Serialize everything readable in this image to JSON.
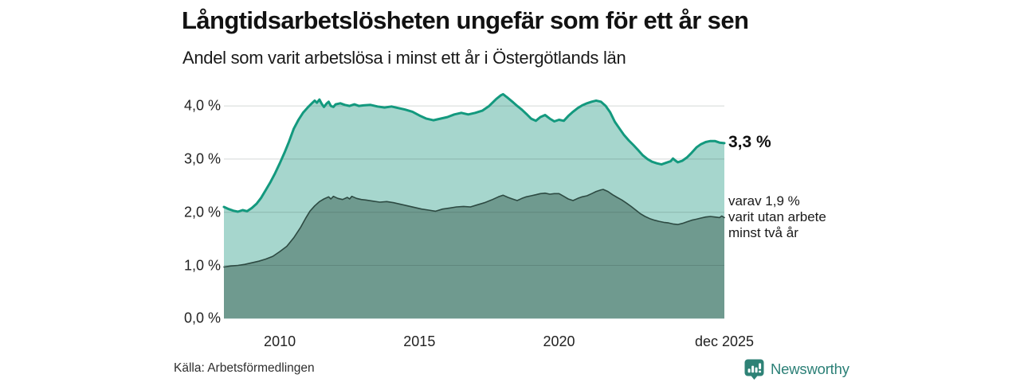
{
  "header": {
    "title": "Långtidsarbetslösheten ungefär som för ett år sen",
    "subtitle": "Andel som varit arbetslösa i minst ett år i Östergötlands län"
  },
  "annotation": {
    "total_end_label": "3,3 %",
    "subset_lines": [
      "varav 1,9 %",
      "varit utan arbete",
      "minst två år"
    ]
  },
  "footer": {
    "source": "Källa: Arbetsförmedlingen",
    "brand": "Newsworthy"
  },
  "colors": {
    "total_line": "#13997e",
    "total_fill": "#a6d6cd",
    "subset_line": "#2d4a42",
    "subset_fill": "#6f9a8f",
    "gridline": "rgba(40,60,55,0.20)",
    "brand_teal": "#2e8276",
    "text_dark": "#121212"
  },
  "chart_data": {
    "type": "area",
    "title": "Långtidsarbetslösheten ungefär som för ett år sen",
    "subtitle": "Andel som varit arbetslösa i minst ett år i Östergötlands län",
    "xlabel": "",
    "ylabel": "",
    "x_range": [
      2008.0,
      2025.92
    ],
    "ylim": [
      0,
      4.4
    ],
    "grid": true,
    "legend_position": "none",
    "y_ticks": [
      {
        "value": 0.0,
        "label": "0,0 %"
      },
      {
        "value": 1.0,
        "label": "1,0 %"
      },
      {
        "value": 2.0,
        "label": "2,0 %"
      },
      {
        "value": 3.0,
        "label": "3,0 %"
      },
      {
        "value": 4.0,
        "label": "4,0 %"
      }
    ],
    "x_ticks": [
      {
        "x": 2010,
        "label": "2010"
      },
      {
        "x": 2015,
        "label": "2015"
      },
      {
        "x": 2020,
        "label": "2020"
      },
      {
        "x": 2025.92,
        "label": "dec 2025"
      }
    ],
    "series": [
      {
        "id": "minst-ett-ar",
        "name": "Andel som varit arbetslösa i minst ett år",
        "end_value": 3.3,
        "end_value_label": "3,3 %",
        "line_color": "#13997e",
        "fill_color": "#a6d6cd",
        "line_width": 3,
        "points": [
          [
            2008.0,
            2.1
          ],
          [
            2008.17,
            2.06
          ],
          [
            2008.33,
            2.03
          ],
          [
            2008.5,
            2.01
          ],
          [
            2008.67,
            2.04
          ],
          [
            2008.83,
            2.02
          ],
          [
            2009.0,
            2.08
          ],
          [
            2009.17,
            2.16
          ],
          [
            2009.33,
            2.27
          ],
          [
            2009.5,
            2.42
          ],
          [
            2009.67,
            2.57
          ],
          [
            2009.83,
            2.73
          ],
          [
            2010.0,
            2.92
          ],
          [
            2010.17,
            3.12
          ],
          [
            2010.33,
            3.33
          ],
          [
            2010.5,
            3.57
          ],
          [
            2010.67,
            3.74
          ],
          [
            2010.83,
            3.87
          ],
          [
            2011.0,
            3.97
          ],
          [
            2011.17,
            4.06
          ],
          [
            2011.25,
            4.1
          ],
          [
            2011.33,
            4.06
          ],
          [
            2011.42,
            4.12
          ],
          [
            2011.5,
            4.04
          ],
          [
            2011.58,
            3.98
          ],
          [
            2011.67,
            4.04
          ],
          [
            2011.75,
            4.08
          ],
          [
            2011.83,
            4.0
          ],
          [
            2011.92,
            3.98
          ],
          [
            2012.0,
            4.03
          ],
          [
            2012.17,
            4.05
          ],
          [
            2012.33,
            4.02
          ],
          [
            2012.5,
            4.0
          ],
          [
            2012.67,
            4.03
          ],
          [
            2012.83,
            4.0
          ],
          [
            2013.0,
            4.01
          ],
          [
            2013.25,
            4.02
          ],
          [
            2013.5,
            3.99
          ],
          [
            2013.75,
            3.97
          ],
          [
            2014.0,
            3.99
          ],
          [
            2014.25,
            3.96
          ],
          [
            2014.5,
            3.93
          ],
          [
            2014.75,
            3.89
          ],
          [
            2015.0,
            3.82
          ],
          [
            2015.25,
            3.76
          ],
          [
            2015.5,
            3.73
          ],
          [
            2015.75,
            3.76
          ],
          [
            2016.0,
            3.79
          ],
          [
            2016.25,
            3.84
          ],
          [
            2016.5,
            3.87
          ],
          [
            2016.75,
            3.84
          ],
          [
            2017.0,
            3.87
          ],
          [
            2017.25,
            3.91
          ],
          [
            2017.5,
            4.0
          ],
          [
            2017.75,
            4.13
          ],
          [
            2017.92,
            4.2
          ],
          [
            2018.0,
            4.22
          ],
          [
            2018.17,
            4.15
          ],
          [
            2018.33,
            4.08
          ],
          [
            2018.5,
            4.0
          ],
          [
            2018.67,
            3.93
          ],
          [
            2018.83,
            3.85
          ],
          [
            2019.0,
            3.76
          ],
          [
            2019.17,
            3.72
          ],
          [
            2019.33,
            3.79
          ],
          [
            2019.5,
            3.83
          ],
          [
            2019.67,
            3.76
          ],
          [
            2019.83,
            3.71
          ],
          [
            2020.0,
            3.74
          ],
          [
            2020.17,
            3.72
          ],
          [
            2020.33,
            3.81
          ],
          [
            2020.5,
            3.89
          ],
          [
            2020.67,
            3.96
          ],
          [
            2020.83,
            4.01
          ],
          [
            2021.0,
            4.05
          ],
          [
            2021.17,
            4.08
          ],
          [
            2021.33,
            4.1
          ],
          [
            2021.5,
            4.08
          ],
          [
            2021.67,
            4.0
          ],
          [
            2021.83,
            3.88
          ],
          [
            2022.0,
            3.7
          ],
          [
            2022.17,
            3.57
          ],
          [
            2022.33,
            3.45
          ],
          [
            2022.5,
            3.35
          ],
          [
            2022.67,
            3.26
          ],
          [
            2022.83,
            3.17
          ],
          [
            2023.0,
            3.07
          ],
          [
            2023.17,
            3.0
          ],
          [
            2023.33,
            2.95
          ],
          [
            2023.5,
            2.92
          ],
          [
            2023.67,
            2.9
          ],
          [
            2023.83,
            2.93
          ],
          [
            2024.0,
            2.96
          ],
          [
            2024.08,
            3.01
          ],
          [
            2024.17,
            2.97
          ],
          [
            2024.25,
            2.94
          ],
          [
            2024.42,
            2.97
          ],
          [
            2024.58,
            3.03
          ],
          [
            2024.75,
            3.12
          ],
          [
            2024.92,
            3.22
          ],
          [
            2025.08,
            3.28
          ],
          [
            2025.25,
            3.32
          ],
          [
            2025.42,
            3.34
          ],
          [
            2025.58,
            3.34
          ],
          [
            2025.75,
            3.31
          ],
          [
            2025.92,
            3.3
          ]
        ]
      },
      {
        "id": "minst-tva-ar",
        "name": "varav utan arbete minst två år",
        "end_value": 1.9,
        "end_value_label": "1,9 %",
        "line_color": "#2d4a42",
        "fill_color": "#6f9a8f",
        "line_width": 1.6,
        "points": [
          [
            2008.0,
            0.97
          ],
          [
            2008.25,
            0.99
          ],
          [
            2008.5,
            1.0
          ],
          [
            2008.75,
            1.02
          ],
          [
            2009.0,
            1.05
          ],
          [
            2009.25,
            1.08
          ],
          [
            2009.5,
            1.12
          ],
          [
            2009.75,
            1.17
          ],
          [
            2010.0,
            1.26
          ],
          [
            2010.25,
            1.36
          ],
          [
            2010.5,
            1.52
          ],
          [
            2010.75,
            1.72
          ],
          [
            2010.92,
            1.88
          ],
          [
            2011.08,
            2.02
          ],
          [
            2011.25,
            2.12
          ],
          [
            2011.42,
            2.2
          ],
          [
            2011.58,
            2.25
          ],
          [
            2011.75,
            2.29
          ],
          [
            2011.83,
            2.25
          ],
          [
            2011.92,
            2.3
          ],
          [
            2012.08,
            2.26
          ],
          [
            2012.25,
            2.24
          ],
          [
            2012.42,
            2.28
          ],
          [
            2012.5,
            2.25
          ],
          [
            2012.58,
            2.3
          ],
          [
            2012.75,
            2.26
          ],
          [
            2012.92,
            2.24
          ],
          [
            2013.08,
            2.23
          ],
          [
            2013.33,
            2.21
          ],
          [
            2013.58,
            2.19
          ],
          [
            2013.83,
            2.2
          ],
          [
            2014.08,
            2.18
          ],
          [
            2014.33,
            2.15
          ],
          [
            2014.58,
            2.12
          ],
          [
            2014.83,
            2.09
          ],
          [
            2015.08,
            2.06
          ],
          [
            2015.33,
            2.04
          ],
          [
            2015.58,
            2.02
          ],
          [
            2015.83,
            2.06
          ],
          [
            2016.08,
            2.08
          ],
          [
            2016.33,
            2.1
          ],
          [
            2016.58,
            2.11
          ],
          [
            2016.83,
            2.1
          ],
          [
            2017.08,
            2.14
          ],
          [
            2017.33,
            2.18
          ],
          [
            2017.58,
            2.23
          ],
          [
            2017.83,
            2.29
          ],
          [
            2018.0,
            2.32
          ],
          [
            2018.17,
            2.28
          ],
          [
            2018.33,
            2.25
          ],
          [
            2018.5,
            2.22
          ],
          [
            2018.67,
            2.26
          ],
          [
            2018.83,
            2.29
          ],
          [
            2019.0,
            2.31
          ],
          [
            2019.17,
            2.33
          ],
          [
            2019.33,
            2.35
          ],
          [
            2019.5,
            2.36
          ],
          [
            2019.67,
            2.34
          ],
          [
            2019.83,
            2.35
          ],
          [
            2020.0,
            2.35
          ],
          [
            2020.17,
            2.3
          ],
          [
            2020.33,
            2.25
          ],
          [
            2020.5,
            2.22
          ],
          [
            2020.67,
            2.26
          ],
          [
            2020.83,
            2.29
          ],
          [
            2021.0,
            2.31
          ],
          [
            2021.17,
            2.35
          ],
          [
            2021.33,
            2.39
          ],
          [
            2021.5,
            2.42
          ],
          [
            2021.58,
            2.43
          ],
          [
            2021.75,
            2.39
          ],
          [
            2021.92,
            2.33
          ],
          [
            2022.08,
            2.28
          ],
          [
            2022.25,
            2.23
          ],
          [
            2022.42,
            2.17
          ],
          [
            2022.58,
            2.11
          ],
          [
            2022.75,
            2.04
          ],
          [
            2022.92,
            1.97
          ],
          [
            2023.08,
            1.92
          ],
          [
            2023.25,
            1.88
          ],
          [
            2023.42,
            1.85
          ],
          [
            2023.58,
            1.83
          ],
          [
            2023.75,
            1.81
          ],
          [
            2023.92,
            1.8
          ],
          [
            2024.08,
            1.78
          ],
          [
            2024.25,
            1.77
          ],
          [
            2024.42,
            1.79
          ],
          [
            2024.58,
            1.82
          ],
          [
            2024.75,
            1.85
          ],
          [
            2024.92,
            1.87
          ],
          [
            2025.08,
            1.89
          ],
          [
            2025.25,
            1.91
          ],
          [
            2025.42,
            1.92
          ],
          [
            2025.58,
            1.91
          ],
          [
            2025.75,
            1.9
          ],
          [
            2025.83,
            1.93
          ],
          [
            2025.92,
            1.9
          ]
        ]
      }
    ]
  }
}
